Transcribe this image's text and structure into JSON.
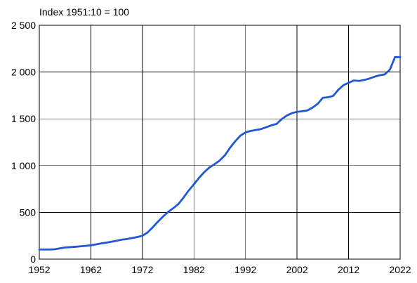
{
  "chart_data": {
    "type": "line",
    "title": "Index 1951:10 = 100",
    "xlabel": "",
    "ylabel": "",
    "xlim": [
      1952,
      2022
    ],
    "ylim": [
      0,
      2500
    ],
    "x_ticks": [
      1952,
      1962,
      1972,
      1982,
      1992,
      2002,
      2012,
      2022
    ],
    "x_tick_labels": [
      "1952",
      "1962",
      "1972",
      "1982",
      "1992",
      "2002",
      "2012",
      "2022"
    ],
    "y_ticks": [
      0,
      500,
      1000,
      1500,
      2000,
      2500
    ],
    "y_tick_labels": [
      "0",
      "500",
      "1 000",
      "1 500",
      "2 000",
      "2 500"
    ],
    "grid": true,
    "legend": "none",
    "series": [
      {
        "color": "#1f57d6",
        "x": [
          1952,
          1953,
          1954,
          1955,
          1956,
          1957,
          1958,
          1959,
          1960,
          1961,
          1962,
          1963,
          1964,
          1965,
          1966,
          1967,
          1968,
          1969,
          1970,
          1971,
          1972,
          1973,
          1974,
          1975,
          1976,
          1977,
          1978,
          1979,
          1980,
          1981,
          1982,
          1983,
          1984,
          1985,
          1986,
          1987,
          1988,
          1989,
          1990,
          1991,
          1992,
          1993,
          1994,
          1995,
          1996,
          1997,
          1998,
          1999,
          2000,
          2001,
          2002,
          2003,
          2004,
          2005,
          2006,
          2007,
          2008,
          2009,
          2010,
          2011,
          2012,
          2013,
          2014,
          2015,
          2016,
          2017,
          2018,
          2019,
          2020,
          2021,
          2022
        ],
        "values": [
          103,
          103,
          103,
          105,
          115,
          125,
          128,
          132,
          137,
          142,
          148,
          158,
          168,
          176,
          186,
          196,
          208,
          215,
          225,
          236,
          250,
          285,
          340,
          400,
          455,
          505,
          545,
          590,
          660,
          735,
          800,
          870,
          930,
          980,
          1015,
          1055,
          1110,
          1190,
          1260,
          1320,
          1355,
          1370,
          1380,
          1390,
          1410,
          1430,
          1445,
          1495,
          1535,
          1560,
          1575,
          1580,
          1590,
          1620,
          1660,
          1725,
          1730,
          1745,
          1810,
          1860,
          1885,
          1910,
          1905,
          1915,
          1930,
          1950,
          1965,
          1975,
          2025,
          2160,
          2160
        ]
      }
    ]
  }
}
